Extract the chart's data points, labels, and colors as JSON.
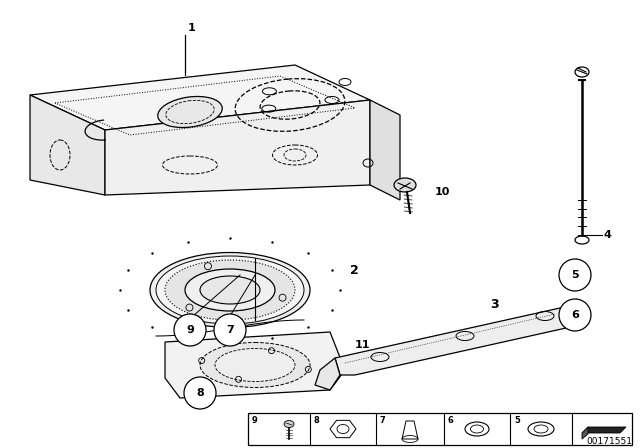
{
  "bg_color": "#ffffff",
  "line_color": "#000000",
  "part_number_id": "00171551",
  "fig_width": 6.4,
  "fig_height": 4.48,
  "dpi": 100
}
